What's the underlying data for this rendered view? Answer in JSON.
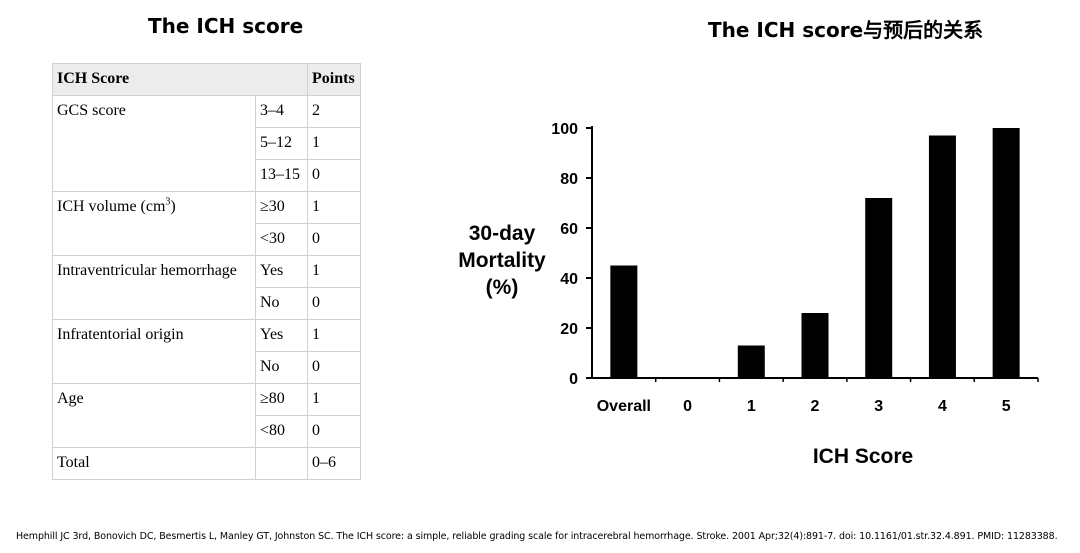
{
  "left_title": "The ICH score",
  "right_title": "The ICH score与预后的关系",
  "table": {
    "header_label": "ICH Score",
    "header_points": "Points",
    "rows": [
      {
        "criterion": "GCS score",
        "option": "3–4",
        "points": "2"
      },
      {
        "criterion": "",
        "option": "5–12",
        "points": "1"
      },
      {
        "criterion": "",
        "option": "13–15",
        "points": "0"
      },
      {
        "criterion": "ICH volume (cm",
        "criterion_sup": "3",
        "criterion_tail": ")",
        "option": "≥30",
        "points": "1"
      },
      {
        "criterion": "",
        "option": "<30",
        "points": "0"
      },
      {
        "criterion": "Intraventricular hemorrhage",
        "option": "Yes",
        "points": "1"
      },
      {
        "criterion": "",
        "option": "No",
        "points": "0"
      },
      {
        "criterion": "Infratentorial origin",
        "option": "Yes",
        "points": "1"
      },
      {
        "criterion": "",
        "option": "No",
        "points": "0"
      },
      {
        "criterion": "Age",
        "option": "≥80",
        "points": "1"
      },
      {
        "criterion": "",
        "option": "<80",
        "points": "0"
      },
      {
        "criterion": "Total",
        "option": "",
        "points": "0–6"
      }
    ]
  },
  "chart_data": {
    "type": "bar",
    "categories": [
      "Overall",
      "0",
      "1",
      "2",
      "3",
      "4",
      "5"
    ],
    "values": [
      45,
      0,
      13,
      26,
      72,
      97,
      100
    ],
    "ylabel": [
      "30-day",
      "Mortality",
      "(%)"
    ],
    "xlabel": "ICH Score",
    "ylim": [
      0,
      100
    ],
    "yticks": [
      "0",
      "20",
      "40",
      "60",
      "80",
      "100"
    ],
    "ytick_values": [
      0,
      20,
      40,
      60,
      80,
      100
    ],
    "bar_color": "#000000",
    "grid": false
  },
  "citation": "Hemphill JC 3rd, Bonovich DC, Besmertis L, Manley GT, Johnston SC. The ICH score: a simple, reliable grading scale for intracerebral hemorrhage. Stroke. 2001 Apr;32(4):891-7. doi: 10.1161/01.str.32.4.891. PMID: 11283388."
}
